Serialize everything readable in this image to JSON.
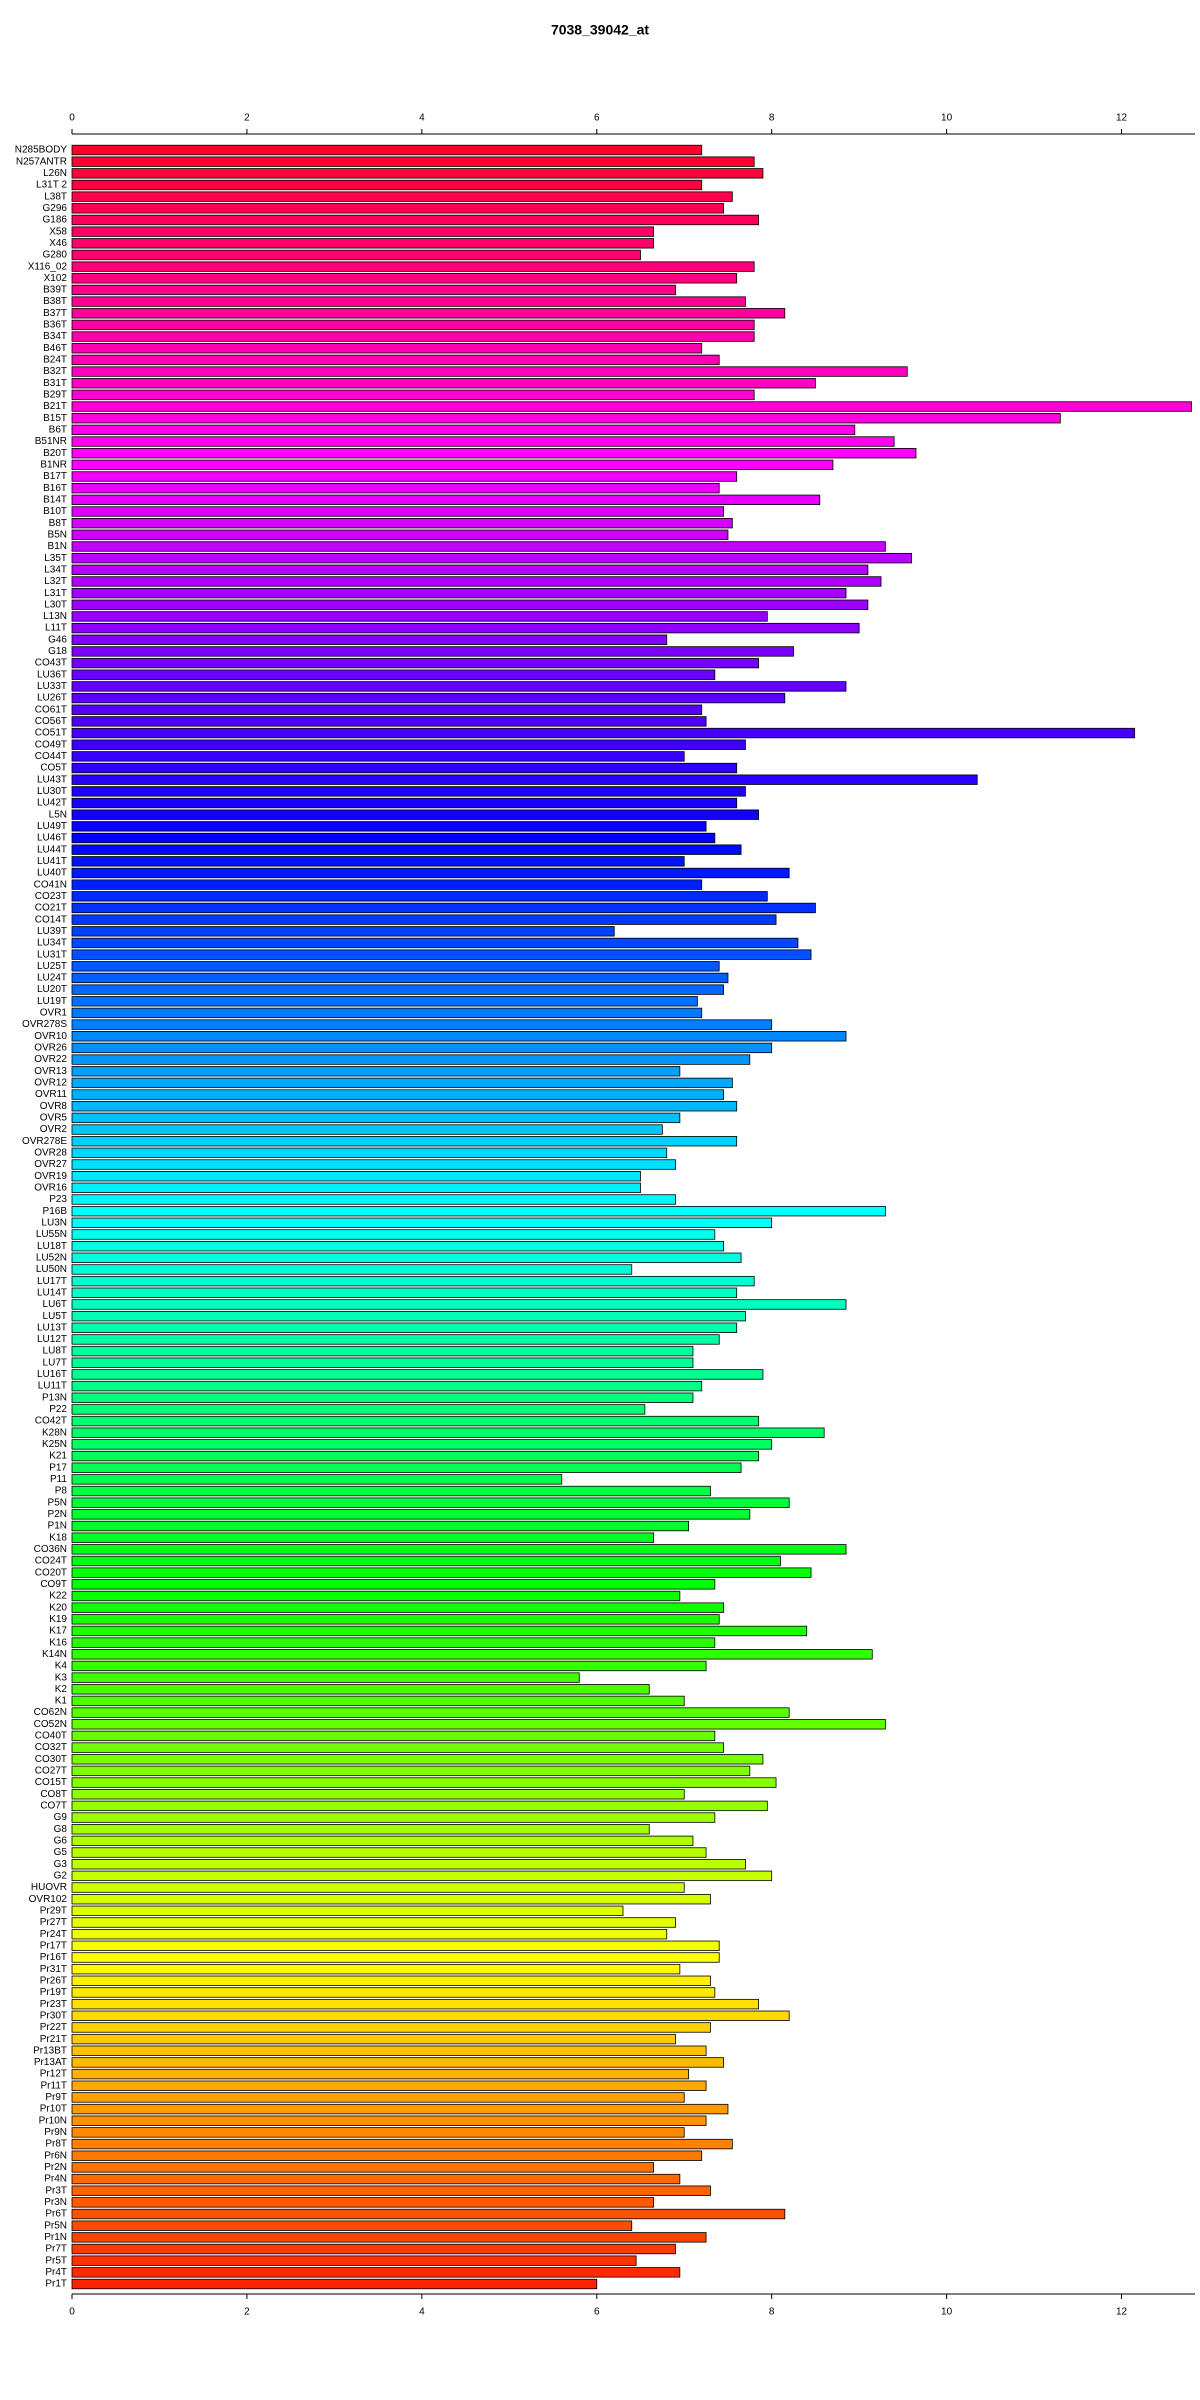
{
  "chart_data": {
    "type": "barh",
    "title": "7038_39042_at",
    "categories": [
      "N285BODY",
      "N257ANTR",
      "L26N",
      "L31T 2",
      "L38T",
      "G296",
      "G186",
      "X58",
      "X46",
      "G280",
      "X116_02",
      "X102",
      "B39T",
      "B38T",
      "B37T",
      "B36T",
      "B34T",
      "B46T",
      "B24T",
      "B32T",
      "B31T",
      "B29T",
      "B21T",
      "B15T",
      "B6T",
      "B51NR",
      "B20T",
      "B1NR",
      "B17T",
      "B16T",
      "B14T",
      "B10T",
      "B8T",
      "B5N",
      "B1N",
      "L35T",
      "L34T",
      "L32T",
      "L31T",
      "L30T",
      "L13N",
      "L11T",
      "G46",
      "G18",
      "CO43T",
      "LU36T",
      "LU33T",
      "LU26T",
      "CO61T",
      "CO56T",
      "CO51T",
      "CO49T",
      "CO44T",
      "CO5T",
      "LU43T",
      "LU30T",
      "LU42T",
      "L5N",
      "LU49T",
      "LU46T",
      "LU44T",
      "LU41T",
      "LU40T",
      "CO41N",
      "CO23T",
      "CO21T",
      "CO14T",
      "LU39T",
      "LU34T",
      "LU31T",
      "LU25T",
      "LU24T",
      "LU20T",
      "LU19T",
      "OVR1",
      "OVR278S",
      "OVR10",
      "OVR26",
      "OVR22",
      "OVR13",
      "OVR12",
      "OVR11",
      "OVR8",
      "OVR5",
      "OVR2",
      "OVR278E",
      "OVR28",
      "OVR27",
      "OVR19",
      "OVR16",
      "P23",
      "P16B",
      "LU3N",
      "LU55N",
      "LU18T",
      "LU52N",
      "LU50N",
      "LU17T",
      "LU14T",
      "LU6T",
      "LU5T",
      "LU13T",
      "LU12T",
      "LU8T",
      "LU7T",
      "LU16T",
      "LU11T",
      "P13N",
      "P22",
      "CO42T",
      "K28N",
      "K25N",
      "K21",
      "P17",
      "P11",
      "P8",
      "P5N",
      "P2N",
      "P1N",
      "K18",
      "CO36N",
      "CO24T",
      "CO20T",
      "CO9T",
      "K22",
      "K20",
      "K19",
      "K17",
      "K16",
      "K14N",
      "K4",
      "K3",
      "K2",
      "K1",
      "CO62N",
      "CO52N",
      "CO40T",
      "CO32T",
      "CO30T",
      "CO27T",
      "CO15T",
      "CO8T",
      "CO7T",
      "G9",
      "G8",
      "G6",
      "G5",
      "G3",
      "G2",
      "HUOVR",
      "OVR102",
      "Pr29T",
      "Pr27T",
      "Pr24T",
      "Pr17T",
      "Pr16T",
      "Pr31T",
      "Pr26T",
      "Pr19T",
      "Pr23T",
      "Pr30T",
      "Pr22T",
      "Pr21T",
      "Pr13BT",
      "Pr13AT",
      "Pr12T",
      "Pr11T",
      "Pr9T",
      "Pr10T",
      "Pr10N",
      "Pr9N",
      "Pr8T",
      "Pr6N",
      "Pr2N",
      "Pr4N",
      "Pr3T",
      "Pr3N",
      "Pr6T",
      "Pr5N",
      "Pr1N",
      "Pr7T",
      "Pr5T",
      "Pr4T",
      "Pr1T"
    ],
    "values": [
      7.2,
      7.8,
      7.9,
      7.2,
      7.55,
      7.45,
      7.85,
      6.65,
      6.65,
      6.5,
      7.8,
      7.6,
      6.9,
      7.7,
      8.15,
      7.8,
      7.8,
      7.2,
      7.4,
      9.55,
      8.5,
      7.8,
      12.8,
      11.3,
      8.95,
      9.4,
      9.65,
      8.7,
      7.6,
      7.4,
      8.55,
      7.45,
      7.55,
      7.5,
      9.3,
      9.6,
      9.1,
      9.25,
      8.85,
      9.1,
      7.95,
      9.0,
      6.8,
      8.25,
      7.85,
      7.35,
      8.85,
      8.15,
      7.2,
      7.25,
      12.15,
      7.7,
      7.0,
      7.6,
      10.35,
      7.7,
      7.6,
      7.85,
      7.25,
      7.35,
      7.65,
      7.0,
      8.2,
      7.2,
      7.95,
      8.5,
      8.05,
      6.2,
      8.3,
      8.45,
      7.4,
      7.5,
      7.45,
      7.15,
      7.2,
      8.0,
      8.85,
      8.0,
      7.75,
      6.95,
      7.55,
      7.45,
      7.6,
      6.95,
      6.75,
      7.6,
      6.8,
      6.9,
      6.5,
      6.5,
      6.9,
      9.3,
      8.0,
      7.35,
      7.45,
      7.65,
      6.4,
      7.8,
      7.6,
      8.85,
      7.7,
      7.6,
      7.4,
      7.1,
      7.1,
      7.9,
      7.2,
      7.1,
      6.55,
      7.85,
      8.6,
      8.0,
      7.85,
      7.65,
      5.6,
      7.3,
      8.2,
      7.75,
      7.05,
      6.65,
      8.85,
      8.1,
      8.45,
      7.35,
      6.95,
      7.45,
      7.4,
      8.4,
      7.35,
      9.15,
      7.25,
      5.8,
      6.6,
      7.0,
      8.2,
      9.3,
      7.35,
      7.45,
      7.9,
      7.75,
      8.05,
      7.0,
      7.95,
      7.35,
      6.6,
      7.1,
      7.25,
      7.7,
      8.0,
      7.0,
      7.3,
      6.3,
      6.9,
      6.8,
      7.4,
      7.4,
      6.95,
      7.3,
      7.35,
      7.85,
      8.2,
      7.3,
      6.9,
      7.25,
      7.45,
      7.05,
      7.25,
      7.0,
      7.5,
      7.25,
      7.0,
      7.55,
      7.2,
      6.65,
      6.95,
      7.3,
      6.65,
      8.15,
      6.4,
      7.25,
      6.9,
      6.45,
      6.95,
      6.0
    ],
    "palette": "rainbow",
    "xlim": [
      0,
      12.84
    ],
    "xticks": [
      0,
      2,
      4,
      6,
      8,
      10,
      12
    ]
  }
}
